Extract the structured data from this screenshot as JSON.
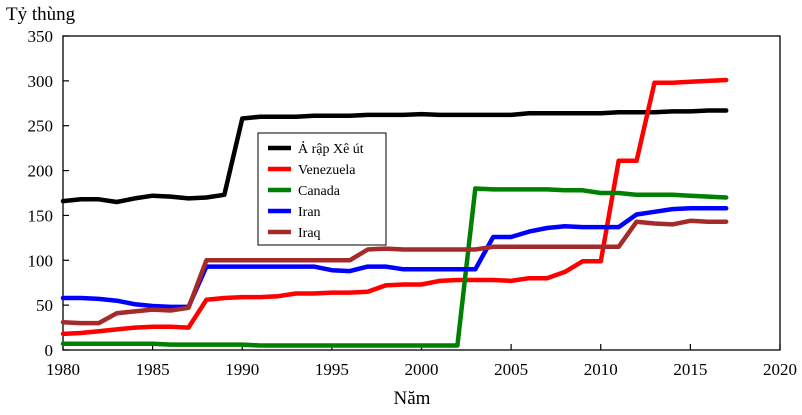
{
  "chart_data": {
    "type": "line",
    "title": "",
    "ylabel": "Tỷ thùng",
    "xlabel": "Năm",
    "xlim": [
      1980,
      2020
    ],
    "ylim": [
      0,
      350
    ],
    "x_ticks": [
      1980,
      1985,
      1990,
      1995,
      2000,
      2005,
      2010,
      2015,
      2020
    ],
    "y_ticks": [
      0,
      50,
      100,
      150,
      200,
      250,
      300,
      350
    ],
    "grid": false,
    "legend_position": "center-left",
    "x": [
      1980,
      1981,
      1982,
      1983,
      1984,
      1985,
      1986,
      1987,
      1988,
      1989,
      1990,
      1991,
      1992,
      1993,
      1994,
      1995,
      1996,
      1997,
      1998,
      1999,
      2000,
      2001,
      2002,
      2003,
      2004,
      2005,
      2006,
      2007,
      2008,
      2009,
      2010,
      2011,
      2012,
      2013,
      2014,
      2015,
      2016,
      2017
    ],
    "series": [
      {
        "name": "Ả rập Xê út",
        "color": "#000000",
        "values": [
          166,
          168,
          168,
          165,
          169,
          172,
          171,
          169,
          170,
          173,
          258,
          260,
          260,
          260,
          261,
          261,
          261,
          262,
          262,
          262,
          263,
          262,
          262,
          262,
          262,
          262,
          264,
          264,
          264,
          264,
          264,
          265,
          265,
          265,
          266,
          266,
          267,
          267
        ]
      },
      {
        "name": "Venezuela",
        "color": "#ff0000",
        "values": [
          18,
          19,
          21,
          23,
          25,
          26,
          26,
          25,
          56,
          58,
          59,
          59,
          60,
          63,
          63,
          64,
          64,
          65,
          72,
          73,
          73,
          77,
          78,
          78,
          78,
          77,
          80,
          80,
          87,
          99,
          99,
          211,
          211,
          298,
          298,
          299,
          300,
          301
        ]
      },
      {
        "name": "Canada",
        "color": "#008000",
        "values": [
          7,
          7,
          7,
          7,
          7,
          7,
          6,
          6,
          6,
          6,
          6,
          5,
          5,
          5,
          5,
          5,
          5,
          5,
          5,
          5,
          5,
          5,
          5,
          180,
          179,
          179,
          179,
          179,
          178,
          178,
          175,
          175,
          173,
          173,
          173,
          172,
          171,
          170
        ]
      },
      {
        "name": "Iran",
        "color": "#0000ff",
        "values": [
          58,
          58,
          57,
          55,
          51,
          49,
          48,
          48,
          93,
          93,
          93,
          93,
          93,
          93,
          93,
          89,
          88,
          93,
          93,
          90,
          90,
          90,
          90,
          90,
          126,
          126,
          132,
          136,
          138,
          137,
          137,
          137,
          151,
          154,
          157,
          158,
          158,
          158
        ]
      },
      {
        "name": "Iraq",
        "color": "#a52a2a",
        "values": [
          31,
          30,
          30,
          41,
          43,
          45,
          44,
          47,
          100,
          100,
          100,
          100,
          100,
          100,
          100,
          100,
          100,
          112,
          113,
          112,
          112,
          112,
          112,
          112,
          115,
          115,
          115,
          115,
          115,
          115,
          115,
          115,
          143,
          141,
          140,
          144,
          143,
          143
        ]
      }
    ]
  }
}
